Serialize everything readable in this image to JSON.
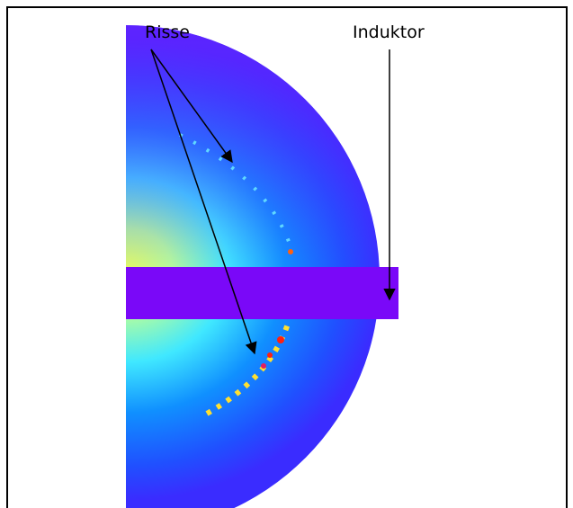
{
  "labels": {
    "cracks": "Risse",
    "inductor": "Induktor"
  }
}
